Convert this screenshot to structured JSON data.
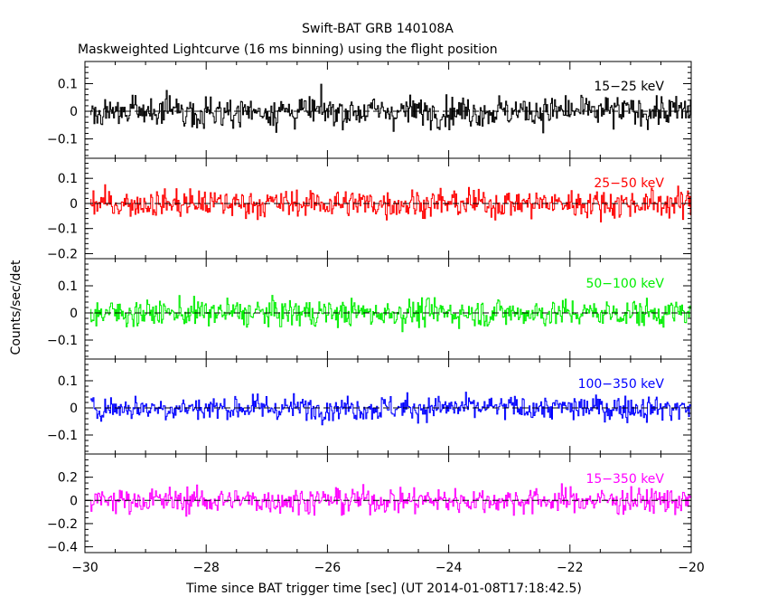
{
  "title": "Swift-BAT GRB 140108A",
  "subtitle": "Maskweighted Lightcurve (16 ms binning) using the flight position",
  "colors": {
    "axes": "#000000",
    "zero_line": "#000000"
  },
  "chart_data": {
    "type": "line",
    "step": true,
    "shared_x": true,
    "xlabel": "Time since BAT trigger time [sec] (UT 2014-01-08T17:18:42.5)",
    "ylabel": "Counts/sec/det",
    "xlim": [
      -30,
      -20
    ],
    "x_ticks": [
      -30,
      -28,
      -26,
      -24,
      -22,
      -20
    ],
    "x_tick_labels": [
      "−30",
      "−28",
      "−26",
      "−24",
      "−22",
      "−20"
    ],
    "grid": false,
    "zero_line": "dashed",
    "panels": [
      {
        "series": "15-25 keV",
        "label": "15−25 keV",
        "color": "#000000",
        "ylim": [
          -0.17,
          0.18
        ],
        "y_ticks": [
          0.1,
          0,
          -0.1
        ],
        "y_tick_labels": [
          "0.1",
          "0",
          "−0.1"
        ],
        "noise_sigma": 0.055
      },
      {
        "series": "25-50 keV",
        "label": "25−50 keV",
        "color": "#ff0000",
        "ylim": [
          -0.22,
          0.18
        ],
        "y_ticks": [
          0.1,
          0,
          -0.1,
          -0.2
        ],
        "y_tick_labels": [
          "0.1",
          "0",
          "−0.1",
          "−0.2"
        ],
        "noise_sigma": 0.055
      },
      {
        "series": "50-100 keV",
        "label": "50−100 keV",
        "color": "#00ee00",
        "ylim": [
          -0.17,
          0.2
        ],
        "y_ticks": [
          0.1,
          0,
          -0.1
        ],
        "y_tick_labels": [
          "0.1",
          "0",
          "−0.1"
        ],
        "noise_sigma": 0.05
      },
      {
        "series": "100-350 keV",
        "label": "100−350 keV",
        "color": "#0000ff",
        "ylim": [
          -0.17,
          0.18
        ],
        "y_ticks": [
          0.1,
          0,
          -0.1
        ],
        "y_tick_labels": [
          "0.1",
          "0",
          "−0.1"
        ],
        "noise_sigma": 0.045
      },
      {
        "series": "15-350 keV",
        "label": "15−350 keV",
        "color": "#ff00ff",
        "ylim": [
          -0.45,
          0.4
        ],
        "y_ticks": [
          0.2,
          0,
          -0.2,
          -0.4
        ],
        "y_tick_labels": [
          "0.2",
          "0",
          "−0.2",
          "−0.4"
        ],
        "noise_sigma": 0.11
      }
    ]
  }
}
